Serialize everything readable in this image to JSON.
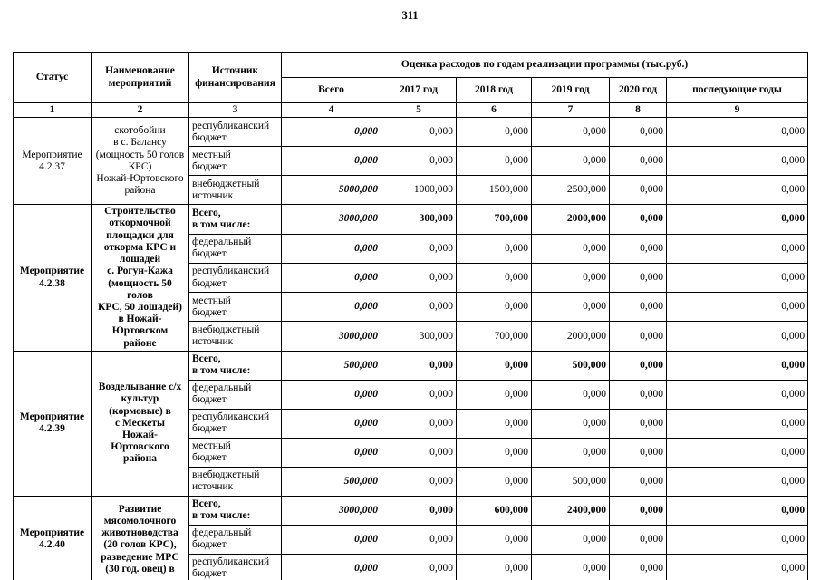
{
  "page": {
    "number": "311"
  },
  "table": {
    "header": {
      "status": "Статус",
      "name": "Наименование мероприятий",
      "source": "Источник финансирования",
      "estimate": "Оценка расходов по годам реализации  программы (тыс.руб.)",
      "years": [
        "Всего",
        "2017 год",
        "2018 год",
        "2019 год",
        "2020 год",
        "последующие годы"
      ],
      "col_numbers": [
        "1",
        "2",
        "3",
        "4",
        "5",
        "6",
        "7",
        "8",
        "9"
      ]
    },
    "groups": [
      {
        "status": "Мероприятие\n4.2.37",
        "name": "скотобойни\nв с. Балансу\n(мощность 50 голов\nКРС)\nНожай-Юртовского\nрайона",
        "rows": [
          {
            "source": "республиканский\nбюджет",
            "bold": false,
            "values": [
              "0,000",
              "0,000",
              "0,000",
              "0,000",
              "0,000",
              "0,000"
            ]
          },
          {
            "source": "местный\nбюджет",
            "bold": false,
            "values": [
              "0,000",
              "0,000",
              "0,000",
              "0,000",
              "0,000",
              "0,000"
            ]
          },
          {
            "source": "внебюджетный\nисточник",
            "bold": false,
            "values": [
              "5000,000",
              "1000,000",
              "1500,000",
              "2500,000",
              "0,000",
              "0,000"
            ]
          }
        ]
      },
      {
        "status": "Мероприятие\n4.2.38",
        "name": "Строительство\nоткормочной\nплощадки для\nоткорма КРС и\nлошадей\nс. Рогун-Кажа\n(мощность 50 голов\nКРС, 50 лошадей)\nв Ножай-Юртовском\nрайоне",
        "rows": [
          {
            "source": "Всего,\nв том числе:",
            "bold": true,
            "values": [
              "3000,000",
              "300,000",
              "700,000",
              "2000,000",
              "0,000",
              "0,000"
            ]
          },
          {
            "source": "федеральный\nбюджет",
            "bold": false,
            "values": [
              "0,000",
              "0,000",
              "0,000",
              "0,000",
              "0,000",
              "0,000"
            ]
          },
          {
            "source": "республиканский\nбюджет",
            "bold": false,
            "values": [
              "0,000",
              "0,000",
              "0,000",
              "0,000",
              "0,000",
              "0,000"
            ]
          },
          {
            "source": "местный\nбюджет",
            "bold": false,
            "values": [
              "0,000",
              "0,000",
              "0,000",
              "0,000",
              "0,000",
              "0,000"
            ]
          },
          {
            "source": "внебюджетный\nисточник",
            "bold": false,
            "values": [
              "3000,000",
              "300,000",
              "700,000",
              "2000,000",
              "0,000",
              "0,000"
            ]
          }
        ]
      },
      {
        "status": "Мероприятие\n4.2.39",
        "name": "Возделывание с/х\nкультур (кормовые) в\nс Мескеты\nНожай-Юртовского\nрайона",
        "rows": [
          {
            "source": "Всего,\nв том числе:",
            "bold": true,
            "values": [
              "500,000",
              "0,000",
              "0,000",
              "500,000",
              "0,000",
              "0,000"
            ]
          },
          {
            "source": "федеральный\nбюджет",
            "bold": false,
            "values": [
              "0,000",
              "0,000",
              "0,000",
              "0,000",
              "0,000",
              "0,000"
            ]
          },
          {
            "source": "республиканский\nбюджет",
            "bold": false,
            "values": [
              "0,000",
              "0,000",
              "0,000",
              "0,000",
              "0,000",
              "0,000"
            ]
          },
          {
            "source": "местный\nбюджет",
            "bold": false,
            "values": [
              "0,000",
              "0,000",
              "0,000",
              "0,000",
              "0,000",
              "0,000"
            ]
          },
          {
            "source": "внебюджетный\nисточник",
            "bold": false,
            "values": [
              "500,000",
              "0,000",
              "0,000",
              "500,000",
              "0,000",
              "0,000"
            ]
          }
        ]
      },
      {
        "status": "Мероприятие\n4.2.40",
        "name": "Развитие\nмясомолочного\nживотноводства\n(20 голов  КРС),\nразведение МРС\n(30 год. овец) в",
        "rows": [
          {
            "source": "Всего,\nв том числе:",
            "bold": true,
            "values": [
              "3000,000",
              "0,000",
              "600,000",
              "2400,000",
              "0,000",
              "0,000"
            ]
          },
          {
            "source": "федеральный\nбюджет",
            "bold": false,
            "values": [
              "0,000",
              "0,000",
              "0,000",
              "0,000",
              "0,000",
              "0,000"
            ]
          },
          {
            "source": "республиканский\nбюджет",
            "bold": false,
            "values": [
              "0,000",
              "0,000",
              "0,000",
              "0,000",
              "0,000",
              "0,000"
            ]
          }
        ]
      }
    ]
  }
}
